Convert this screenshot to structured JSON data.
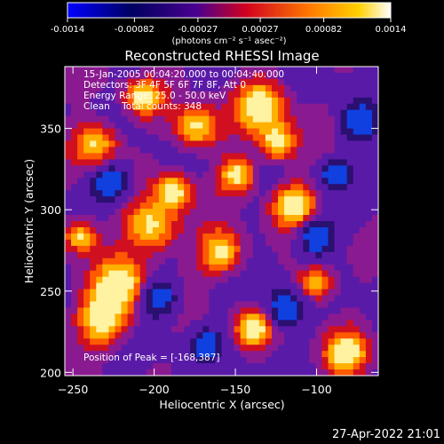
{
  "colorbar": {
    "tick_labels": [
      "-0.0014",
      "-0.00082",
      "-0.00027",
      "0.00027",
      "0.00082",
      "0.0014"
    ],
    "tick_values": [
      -0.0014,
      -0.00082,
      -0.00027,
      0.00027,
      0.00082,
      0.0014
    ],
    "unit_label": "(photons cm⁻² s⁻¹ asec⁻²)",
    "colors": [
      "#0000ff",
      "#000000",
      "#6a0096",
      "#ff0000",
      "#ffa000",
      "#ffffff"
    ]
  },
  "chart_data": {
    "type": "heatmap",
    "title": "Reconstructed RHESSI Image",
    "xlabel": "Heliocentric X (arcsec)",
    "ylabel": "Heliocentric Y (arcsec)",
    "xlim": [
      -255,
      -62
    ],
    "ylim": [
      198,
      388
    ],
    "xticks": [
      -250,
      -200,
      -150,
      -100
    ],
    "yticks": [
      200,
      250,
      300,
      350
    ],
    "x_tick_labels": [
      "−250",
      "−200",
      "−150",
      "−100"
    ],
    "y_tick_labels": [
      "200",
      "250",
      "300",
      "350"
    ],
    "value_range": [
      -0.0014,
      0.0014
    ],
    "peak_position": [
      -168,
      387
    ]
  },
  "annotations": {
    "time_range": "15-Jan-2005 00:04:20.000 to 00:04:40.000",
    "detectors": "Detectors: 3F 4F 5F 6F 7F 8F, Att 0",
    "energy": "Energy Range: 25.0 - 50.0 keV",
    "clean": "Clean    Total counts: 348",
    "peak": "Position of Peak = [-168,387]"
  },
  "footer": {
    "date": "27-Apr-2022 21:01"
  }
}
